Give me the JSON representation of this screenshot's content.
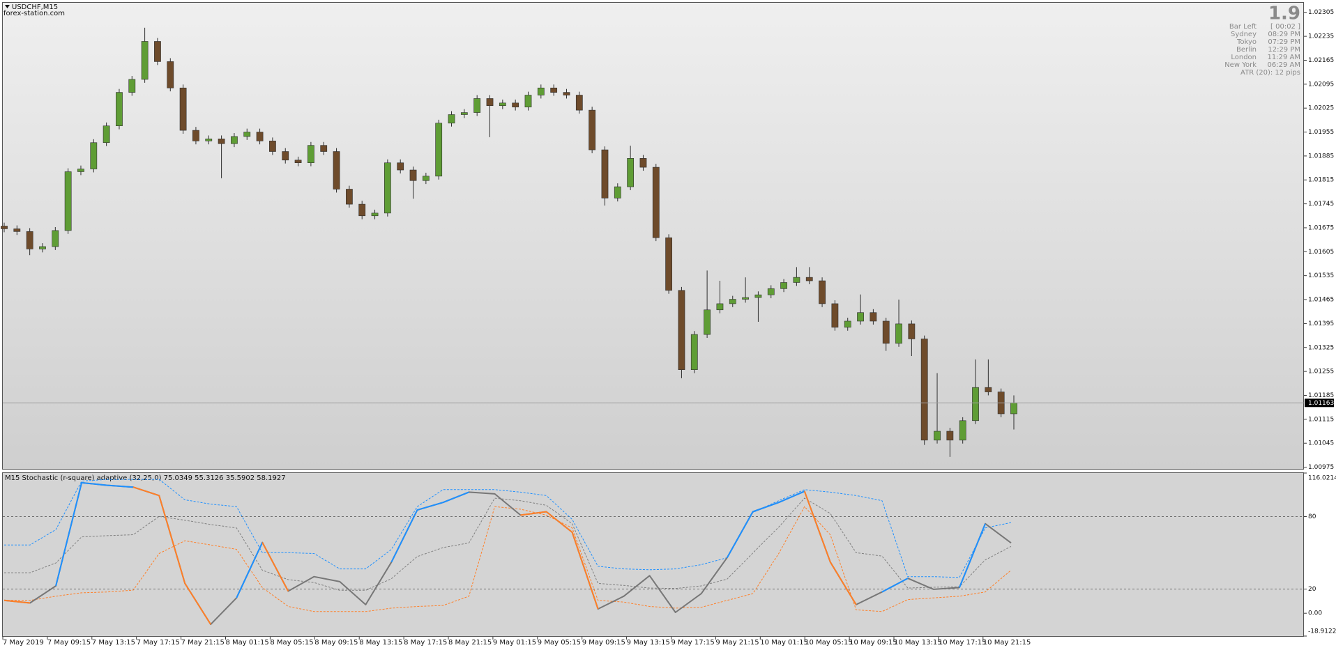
{
  "header": {
    "symbol": "USDCHF,M15",
    "watermark": "forex-station.com"
  },
  "info_panel": {
    "spread": "1.9",
    "rows": [
      [
        "Bar Left",
        "[ 00:02 ]"
      ],
      [
        "Sydney",
        "08:29 PM"
      ],
      [
        "Tokyo",
        "07:29 PM"
      ],
      [
        "Berlin",
        "12:29 PM"
      ],
      [
        "London",
        "11:29 AM"
      ],
      [
        "New York",
        "06:29 AM"
      ]
    ],
    "atr": "ATR (20): 12 pips"
  },
  "chart_data": [
    {
      "type": "candlestick",
      "up_color": "#5f9d35",
      "down_color": "#6e4b2b",
      "wick_color": "#2e2e2e",
      "open": [
        1.0168,
        1.01672,
        1.01664,
        1.01613,
        1.0162,
        1.01667,
        1.01839,
        1.01847,
        1.01924,
        1.01973,
        1.02071,
        1.02109,
        1.0222,
        1.02161,
        1.02084,
        1.0196,
        1.01929,
        1.01935,
        1.01921,
        1.01942,
        1.01955,
        1.01929,
        1.01898,
        1.01873,
        1.01865,
        1.01916,
        1.01898,
        1.01788,
        1.01744,
        1.0171,
        1.01718,
        1.01865,
        1.01844,
        1.01813,
        1.01826,
        1.01981,
        1.02006,
        1.02012,
        1.02053,
        1.02032,
        1.0204,
        1.02028,
        1.02063,
        1.02084,
        1.02071,
        1.02063,
        1.02019,
        1.01903,
        1.01762,
        1.01795,
        1.01878,
        1.01852,
        1.01646,
        1.01492,
        1.0126,
        1.01363,
        1.01435,
        1.01453,
        1.01466,
        1.01471,
        1.01479,
        1.01497,
        1.01515,
        1.0153,
        1.0152,
        1.01453,
        1.01384,
        1.01402,
        1.01427,
        1.01402,
        1.01337,
        1.01394,
        1.0135,
        1.01054,
        1.0108,
        1.01054,
        1.01111,
        1.01208,
        1.01195,
        1.01131
      ],
      "high": [
        1.0169,
        1.01682,
        1.01674,
        1.0163,
        1.01677,
        1.01849,
        1.01857,
        1.01934,
        1.01983,
        1.02081,
        1.02119,
        1.0226,
        1.0223,
        1.02171,
        1.02094,
        1.0197,
        1.01945,
        1.01945,
        1.01952,
        1.01965,
        1.01965,
        1.01939,
        1.01908,
        1.01883,
        1.01926,
        1.01926,
        1.01908,
        1.01798,
        1.01754,
        1.01728,
        1.01875,
        1.01875,
        1.01854,
        1.01836,
        1.01991,
        1.02016,
        1.02022,
        1.02063,
        1.02063,
        1.0205,
        1.0205,
        1.02073,
        1.02094,
        1.02094,
        1.02081,
        1.02073,
        1.02029,
        1.01913,
        1.01805,
        1.01915,
        1.01888,
        1.01862,
        1.01656,
        1.01502,
        1.01373,
        1.0155,
        1.0152,
        1.01476,
        1.0153,
        1.01489,
        1.01507,
        1.01525,
        1.0156,
        1.0156,
        1.0153,
        1.01463,
        1.01412,
        1.0148,
        1.01437,
        1.01412,
        1.01465,
        1.01404,
        1.0136,
        1.0125,
        1.0109,
        1.01121,
        1.0129,
        1.0129,
        1.01205,
        1.01185
      ],
      "low": [
        1.01662,
        1.01654,
        1.01595,
        1.01603,
        1.0161,
        1.01657,
        1.01829,
        1.01837,
        1.01914,
        1.01963,
        1.02061,
        1.02099,
        1.02151,
        1.02074,
        1.0195,
        1.01919,
        1.01919,
        1.0182,
        1.01911,
        1.01932,
        1.01919,
        1.01888,
        1.01863,
        1.01855,
        1.01855,
        1.01888,
        1.01778,
        1.01734,
        1.017,
        1.017,
        1.01708,
        1.01834,
        1.0176,
        1.01803,
        1.01816,
        1.01971,
        1.01996,
        1.02002,
        1.0194,
        1.02022,
        1.02018,
        1.02018,
        1.02053,
        1.02061,
        1.02053,
        1.02009,
        1.01893,
        1.0174,
        1.01752,
        1.01785,
        1.01842,
        1.01636,
        1.01482,
        1.01235,
        1.0125,
        1.01353,
        1.01425,
        1.01443,
        1.01456,
        1.014,
        1.01469,
        1.01487,
        1.01505,
        1.0151,
        1.01443,
        1.01374,
        1.01374,
        1.01392,
        1.01392,
        1.01315,
        1.01327,
        1.013,
        1.0104,
        1.01044,
        1.01005,
        1.01044,
        1.01101,
        1.01185,
        1.01121,
        1.01085
      ],
      "close": [
        1.01672,
        1.01664,
        1.01613,
        1.0162,
        1.01667,
        1.01839,
        1.01847,
        1.01924,
        1.01973,
        1.02071,
        1.02109,
        1.0222,
        1.02161,
        1.02084,
        1.0196,
        1.01929,
        1.01935,
        1.01921,
        1.01942,
        1.01955,
        1.01929,
        1.01898,
        1.01873,
        1.01865,
        1.01916,
        1.01898,
        1.01788,
        1.01744,
        1.0171,
        1.01718,
        1.01865,
        1.01844,
        1.01813,
        1.01826,
        1.01981,
        1.02006,
        1.02012,
        1.02053,
        1.02032,
        1.0204,
        1.02028,
        1.02063,
        1.02084,
        1.02071,
        1.02063,
        1.02019,
        1.01903,
        1.01762,
        1.01795,
        1.01878,
        1.01852,
        1.01646,
        1.01492,
        1.0126,
        1.01363,
        1.01435,
        1.01453,
        1.01466,
        1.01471,
        1.01479,
        1.01497,
        1.01515,
        1.0153,
        1.0152,
        1.01453,
        1.01384,
        1.01402,
        1.01427,
        1.01402,
        1.01337,
        1.01394,
        1.0135,
        1.01054,
        1.0108,
        1.01054,
        1.01111,
        1.01208,
        1.01195,
        1.01131,
        1.01163
      ],
      "ylim": [
        1.0097,
        1.02333
      ],
      "yticks": [
        1.02305,
        1.02235,
        1.02165,
        1.02095,
        1.02025,
        1.01955,
        1.01885,
        1.01815,
        1.01745,
        1.01675,
        1.01605,
        1.01535,
        1.01465,
        1.01395,
        1.01325,
        1.01255,
        1.01185,
        1.01115,
        1.01045,
        1.00975
      ],
      "current_price": 1.01163,
      "time_labels": [
        "7 May 2019",
        "7 May 09:15",
        "7 May 13:15",
        "7 May 17:15",
        "7 May 21:15",
        "8 May 01:15",
        "8 May 05:15",
        "8 May 09:15",
        "8 May 13:15",
        "8 May 17:15",
        "8 May 21:15",
        "9 May 01:15",
        "9 May 05:15",
        "9 May 09:15",
        "9 May 13:15",
        "9 May 17:15",
        "9 May 21:15",
        "10 May 01:15",
        "10 May 05:15",
        "10 May 09:15",
        "10 May 13:15",
        "10 May 17:15",
        "10 May 21:15"
      ]
    },
    {
      "type": "line",
      "title": "M15 Stochastic (r-square) adaptive (32,25,0) 75.0349 55.3126 35.5902 58.1927",
      "ylim": [
        -18.9122,
        116.0214
      ],
      "yticks": [
        116.0214,
        80,
        20,
        {
          "value": 0,
          "label": "0.00"
        },
        -18.9122
      ],
      "levels": [
        80,
        20
      ],
      "series": [
        {
          "color": "#1e90ff",
          "dash": true,
          "values": [
            56.5,
            56.5,
            69.2,
            109.4,
            110.8,
            110.8,
            110.8,
            93.9,
            90.3,
            88.2,
            50.1,
            50.1,
            49.4,
            36.7,
            36.7,
            52.9,
            88.2,
            102.3,
            102.3,
            102.3,
            100.2,
            97.4,
            77.6,
            38.8,
            36.7,
            36.0,
            36.7,
            40.2,
            45.9,
            83.3,
            93.2,
            102.3,
            100.2,
            97.4,
            93.2,
            30.3,
            30.3,
            29.6,
            70.6,
            75.0
          ]
        },
        {
          "color": "#808080",
          "dash": true,
          "values": [
            33.5,
            33.5,
            41.6,
            63.2,
            64.2,
            65.0,
            80.1,
            77.0,
            73.4,
            70.6,
            35.6,
            27.8,
            25.4,
            19.0,
            19.0,
            28.6,
            46.9,
            54.3,
            58.2,
            95.2,
            93.1,
            89.3,
            74.1,
            24.7,
            23.0,
            20.8,
            20.5,
            22.6,
            28.2,
            49.8,
            71.3,
            95.3,
            82.5,
            50.1,
            47.3,
            20.8,
            21.5,
            21.9,
            44.1,
            55.3
          ]
        },
        {
          "color": "#ff7f27",
          "dash": true,
          "values": [
            10.6,
            10.6,
            14.1,
            16.9,
            17.6,
            19.1,
            49.4,
            60.0,
            56.5,
            52.9,
            21.2,
            5.6,
            1.4,
            1.4,
            1.4,
            4.2,
            5.6,
            6.4,
            14.1,
            88.2,
            86.1,
            81.2,
            70.6,
            10.6,
            9.2,
            5.6,
            4.2,
            4.9,
            10.6,
            16.2,
            49.4,
            88.2,
            64.9,
            2.8,
            1.4,
            11.3,
            12.7,
            14.1,
            17.6,
            35.6
          ]
        },
        {
          "color": "#777777",
          "dash": false,
          "values": [
            10.6,
            8.5,
            22.6,
            108.0,
            105.9,
            104.4,
            97.4,
            24.7,
            -9.2,
            12.7,
            58.6,
            18.3,
            30.3,
            26.1,
            7.1,
            42.3,
            85.4,
            91.7,
            100.2,
            98.8,
            81.2,
            84.0,
            67.0,
            3.5,
            14.1,
            31.1,
            0.7,
            16.2,
            45.9,
            84.0,
            91.7,
            100.9,
            42.3,
            7.1,
            17.6,
            28.9,
            19.8,
            21.2,
            74.1,
            58.2
          ]
        },
        {
          "color": "#1e90ff",
          "dash": false,
          "values": [
            null,
            null,
            22.6,
            108.0,
            105.9,
            104.4,
            null,
            null,
            null,
            12.7,
            58.6,
            null,
            null,
            null,
            null,
            42.3,
            85.4,
            91.7,
            100.2,
            null,
            null,
            null,
            null,
            null,
            null,
            null,
            null,
            null,
            45.9,
            84.0,
            91.7,
            100.9,
            null,
            null,
            17.6,
            28.9,
            null,
            21.2,
            74.1,
            null
          ]
        },
        {
          "color": "#ff7f27",
          "dash": false,
          "values": [
            10.6,
            8.5,
            null,
            null,
            null,
            104.4,
            97.4,
            24.7,
            -9.2,
            null,
            58.6,
            18.3,
            null,
            null,
            null,
            null,
            null,
            null,
            null,
            null,
            81.2,
            84.0,
            67.0,
            3.5,
            null,
            null,
            null,
            null,
            null,
            null,
            null,
            100.9,
            42.3,
            7.1,
            null,
            null,
            null,
            null,
            null,
            null
          ]
        }
      ]
    }
  ]
}
